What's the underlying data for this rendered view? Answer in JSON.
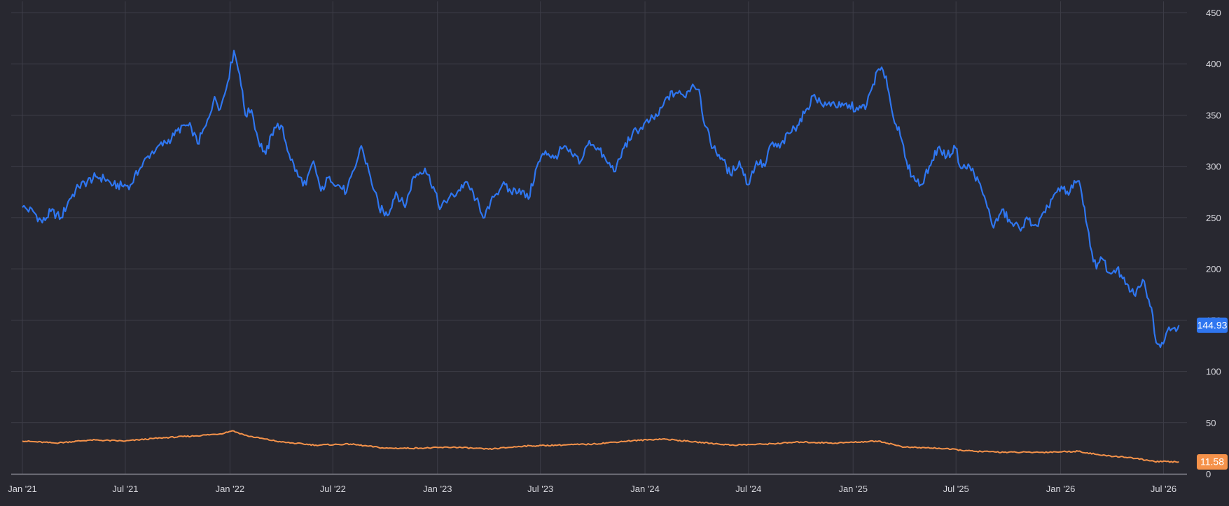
{
  "chart_data": {
    "type": "line",
    "title": "",
    "xlabel": "",
    "ylabel": "",
    "x_tick_labels": [
      "Jan '21",
      "Jul '21",
      "Jan '22",
      "Jul '22",
      "Jan '23",
      "Jul '23",
      "Jan '24",
      "Jul '24",
      "Jan '25",
      "Jul '25",
      "Jan '26",
      "Jul '26"
    ],
    "x_tick_dates": [
      "2021-01-01",
      "2021-07-01",
      "2022-01-01",
      "2022-07-01",
      "2023-01-01",
      "2023-07-01",
      "2024-01-01",
      "2024-07-01",
      "2025-01-01",
      "2025-07-01",
      "2026-01-01",
      "2026-07-01"
    ],
    "x_range": [
      "2021-01-01",
      "2026-08-10"
    ],
    "y_axis_position": "right",
    "ylim": [
      0,
      450
    ],
    "y_tick_labels": [
      "0",
      "50",
      "100",
      "150",
      "200",
      "250",
      "300",
      "350",
      "400",
      "450"
    ],
    "y_tick_values": [
      0,
      50,
      100,
      150,
      200,
      250,
      300,
      350,
      400,
      450
    ],
    "grid": true,
    "legend": "none",
    "series": [
      {
        "color": "#2f76f0",
        "last_value_label": "144.93",
        "last_value": 144.93,
        "points": [
          [
            "2021-01-01",
            260
          ],
          [
            "2021-01-20",
            256
          ],
          [
            "2021-02-05",
            245
          ],
          [
            "2021-02-20",
            256
          ],
          [
            "2021-03-10",
            250
          ],
          [
            "2021-03-25",
            268
          ],
          [
            "2021-04-10",
            280
          ],
          [
            "2021-04-25",
            285
          ],
          [
            "2021-05-10",
            290
          ],
          [
            "2021-05-25",
            288
          ],
          [
            "2021-06-10",
            282
          ],
          [
            "2021-06-25",
            281
          ],
          [
            "2021-07-10",
            282
          ],
          [
            "2021-07-25",
            296
          ],
          [
            "2021-08-10",
            310
          ],
          [
            "2021-08-25",
            318
          ],
          [
            "2021-09-10",
            323
          ],
          [
            "2021-09-25",
            330
          ],
          [
            "2021-10-10",
            340
          ],
          [
            "2021-10-25",
            338
          ],
          [
            "2021-11-05",
            322
          ],
          [
            "2021-11-20",
            340
          ],
          [
            "2021-12-05",
            368
          ],
          [
            "2021-12-15",
            356
          ],
          [
            "2021-12-28",
            382
          ],
          [
            "2022-01-08",
            413
          ],
          [
            "2022-01-18",
            390
          ],
          [
            "2022-01-28",
            350
          ],
          [
            "2022-02-08",
            355
          ],
          [
            "2022-02-20",
            325
          ],
          [
            "2022-03-05",
            312
          ],
          [
            "2022-03-20",
            338
          ],
          [
            "2022-04-01",
            340
          ],
          [
            "2022-04-15",
            312
          ],
          [
            "2022-05-01",
            290
          ],
          [
            "2022-05-15",
            282
          ],
          [
            "2022-05-28",
            305
          ],
          [
            "2022-06-10",
            276
          ],
          [
            "2022-06-25",
            290
          ],
          [
            "2022-07-10",
            282
          ],
          [
            "2022-07-25",
            275
          ],
          [
            "2022-08-10",
            300
          ],
          [
            "2022-08-20",
            320
          ],
          [
            "2022-09-05",
            290
          ],
          [
            "2022-09-20",
            260
          ],
          [
            "2022-10-05",
            252
          ],
          [
            "2022-10-20",
            275
          ],
          [
            "2022-11-05",
            260
          ],
          [
            "2022-11-20",
            290
          ],
          [
            "2022-12-10",
            298
          ],
          [
            "2022-12-25",
            280
          ],
          [
            "2023-01-05",
            258
          ],
          [
            "2023-01-20",
            268
          ],
          [
            "2023-02-05",
            275
          ],
          [
            "2023-02-20",
            285
          ],
          [
            "2023-03-10",
            268
          ],
          [
            "2023-03-25",
            250
          ],
          [
            "2023-04-10",
            270
          ],
          [
            "2023-04-25",
            282
          ],
          [
            "2023-05-10",
            275
          ],
          [
            "2023-05-25",
            278
          ],
          [
            "2023-06-10",
            268
          ],
          [
            "2023-06-25",
            300
          ],
          [
            "2023-07-10",
            315
          ],
          [
            "2023-07-25",
            308
          ],
          [
            "2023-08-10",
            318
          ],
          [
            "2023-08-25",
            312
          ],
          [
            "2023-09-10",
            305
          ],
          [
            "2023-09-25",
            325
          ],
          [
            "2023-10-10",
            318
          ],
          [
            "2023-10-25",
            305
          ],
          [
            "2023-11-10",
            295
          ],
          [
            "2023-11-25",
            318
          ],
          [
            "2023-12-10",
            332
          ],
          [
            "2023-12-25",
            338
          ],
          [
            "2024-01-10",
            345
          ],
          [
            "2024-01-25",
            350
          ],
          [
            "2024-02-10",
            368
          ],
          [
            "2024-02-25",
            372
          ],
          [
            "2024-03-10",
            368
          ],
          [
            "2024-03-25",
            380
          ],
          [
            "2024-04-05",
            375
          ],
          [
            "2024-04-15",
            340
          ],
          [
            "2024-04-30",
            318
          ],
          [
            "2024-05-15",
            308
          ],
          [
            "2024-05-30",
            292
          ],
          [
            "2024-06-15",
            305
          ],
          [
            "2024-06-30",
            282
          ],
          [
            "2024-07-15",
            305
          ],
          [
            "2024-07-30",
            300
          ],
          [
            "2024-08-10",
            322
          ],
          [
            "2024-08-25",
            318
          ],
          [
            "2024-09-10",
            332
          ],
          [
            "2024-09-25",
            340
          ],
          [
            "2024-10-10",
            355
          ],
          [
            "2024-10-25",
            370
          ],
          [
            "2024-11-10",
            358
          ],
          [
            "2024-11-25",
            362
          ],
          [
            "2024-12-10",
            358
          ],
          [
            "2024-12-25",
            360
          ],
          [
            "2025-01-10",
            355
          ],
          [
            "2025-01-25",
            360
          ],
          [
            "2025-02-05",
            380
          ],
          [
            "2025-02-15",
            395
          ],
          [
            "2025-02-28",
            388
          ],
          [
            "2025-03-10",
            355
          ],
          [
            "2025-03-25",
            330
          ],
          [
            "2025-04-05",
            305
          ],
          [
            "2025-04-15",
            290
          ],
          [
            "2025-04-30",
            282
          ],
          [
            "2025-05-15",
            300
          ],
          [
            "2025-05-30",
            318
          ],
          [
            "2025-06-15",
            310
          ],
          [
            "2025-06-30",
            318
          ],
          [
            "2025-07-10",
            298
          ],
          [
            "2025-07-25",
            300
          ],
          [
            "2025-08-10",
            285
          ],
          [
            "2025-08-25",
            260
          ],
          [
            "2025-09-05",
            240
          ],
          [
            "2025-09-20",
            258
          ],
          [
            "2025-10-05",
            245
          ],
          [
            "2025-10-20",
            240
          ],
          [
            "2025-11-05",
            248
          ],
          [
            "2025-11-20",
            242
          ],
          [
            "2025-12-05",
            255
          ],
          [
            "2025-12-20",
            272
          ],
          [
            "2026-01-05",
            278
          ],
          [
            "2026-01-15",
            272
          ],
          [
            "2026-01-25",
            286
          ],
          [
            "2026-02-05",
            280
          ],
          [
            "2026-02-12",
            260
          ],
          [
            "2026-02-22",
            222
          ],
          [
            "2026-03-05",
            200
          ],
          [
            "2026-03-15",
            210
          ],
          [
            "2026-03-28",
            196
          ],
          [
            "2026-04-10",
            200
          ],
          [
            "2026-04-25",
            185
          ],
          [
            "2026-05-10",
            175
          ],
          [
            "2026-05-20",
            182
          ],
          [
            "2026-05-28",
            188
          ],
          [
            "2026-06-05",
            170
          ],
          [
            "2026-06-12",
            155
          ],
          [
            "2026-06-18",
            128
          ],
          [
            "2026-06-28",
            128
          ],
          [
            "2026-07-08",
            140
          ],
          [
            "2026-07-18",
            142
          ],
          [
            "2026-07-28",
            144.93
          ]
        ]
      },
      {
        "color": "#f5924a",
        "last_value_label": "11.58",
        "last_value": 11.58,
        "points": [
          [
            "2021-01-01",
            32
          ],
          [
            "2021-03-01",
            30
          ],
          [
            "2021-05-01",
            33
          ],
          [
            "2021-07-01",
            32
          ],
          [
            "2021-09-01",
            35
          ],
          [
            "2021-11-01",
            37
          ],
          [
            "2021-12-15",
            39
          ],
          [
            "2022-01-05",
            42
          ],
          [
            "2022-02-01",
            37
          ],
          [
            "2022-04-01",
            31
          ],
          [
            "2022-06-01",
            28
          ],
          [
            "2022-08-01",
            29
          ],
          [
            "2022-10-01",
            25
          ],
          [
            "2022-12-01",
            25
          ],
          [
            "2023-02-01",
            26
          ],
          [
            "2023-04-01",
            24
          ],
          [
            "2023-06-01",
            27
          ],
          [
            "2023-08-01",
            28
          ],
          [
            "2023-10-01",
            29
          ],
          [
            "2023-12-01",
            32
          ],
          [
            "2024-02-01",
            34
          ],
          [
            "2024-04-01",
            31
          ],
          [
            "2024-06-01",
            28
          ],
          [
            "2024-08-01",
            29
          ],
          [
            "2024-10-01",
            31
          ],
          [
            "2024-12-01",
            30
          ],
          [
            "2025-02-15",
            32
          ],
          [
            "2025-04-01",
            26
          ],
          [
            "2025-06-01",
            25
          ],
          [
            "2025-08-01",
            22
          ],
          [
            "2025-10-01",
            21
          ],
          [
            "2025-12-01",
            21
          ],
          [
            "2026-02-01",
            22
          ],
          [
            "2026-03-15",
            18
          ],
          [
            "2026-05-01",
            16
          ],
          [
            "2026-06-15",
            12
          ],
          [
            "2026-07-28",
            11.58
          ]
        ]
      }
    ]
  }
}
